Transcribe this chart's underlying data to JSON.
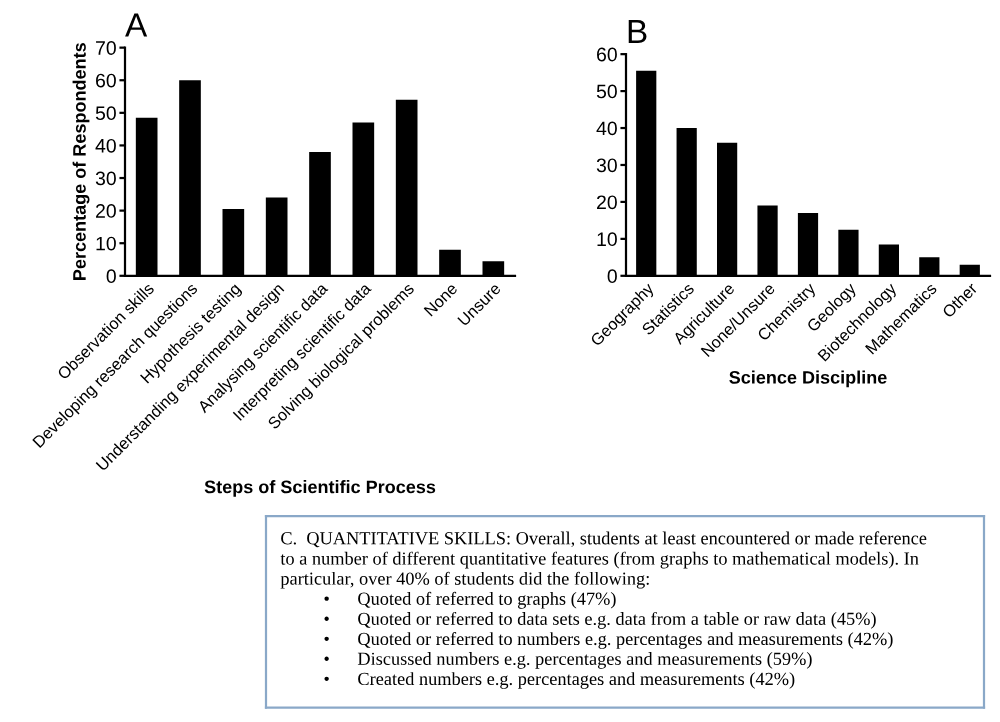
{
  "chart_data": [
    {
      "type": "bar",
      "title": "A",
      "ylabel": "Percentage of Respondents",
      "xlabel": "Steps of Scientific Process",
      "categories": [
        "Observation skills",
        "Developing research questions",
        "Hypothesis testing",
        "Understanding experimental design",
        "Analysing scientific data",
        "Interpreting scientific data",
        "Solving biological problems",
        "None",
        "Unsure"
      ],
      "values": [
        48.5,
        60,
        20.5,
        24,
        38,
        47,
        54,
        8,
        4.5
      ],
      "color": "#000000",
      "ylim": [
        0,
        70
      ],
      "yticks": [
        0,
        10,
        20,
        30,
        40,
        50,
        60,
        70
      ],
      "grid": false,
      "legend": false
    },
    {
      "type": "bar",
      "title": "B",
      "xlabel": "Science Discipline",
      "categories": [
        "Geography",
        "Statistics",
        "Agriculture",
        "None/Unsure",
        "Chemistry",
        "Geology",
        "Biotechnology",
        "Mathematics",
        "Other"
      ],
      "values": [
        55.5,
        40,
        36,
        19,
        17,
        12.5,
        8.5,
        5,
        3
      ],
      "color": "#000000",
      "ylim": [
        0,
        60
      ],
      "yticks": [
        0,
        10,
        20,
        30,
        40,
        50,
        60
      ],
      "grid": false,
      "legend": false
    },
    {
      "type": "other",
      "annotations": [
        "C.  QUANTITATIVE SKILLS: Overall, students at least encountered or made reference",
        "to a number of different quantitative features (from graphs to mathematical models). In",
        "particular, over 40% of students did the following:",
        "•      Quoted of referred to graphs (47%)",
        "•      Quoted or referred to data sets e.g. data from a table or raw data (45%)",
        "•      Quoted or referred to numbers e.g. percentages and measurements (42%)",
        "•      Discussed numbers e.g. percentages and measurements (59%)",
        "•      Created numbers e.g. percentages and measurements (42%)"
      ]
    }
  ]
}
